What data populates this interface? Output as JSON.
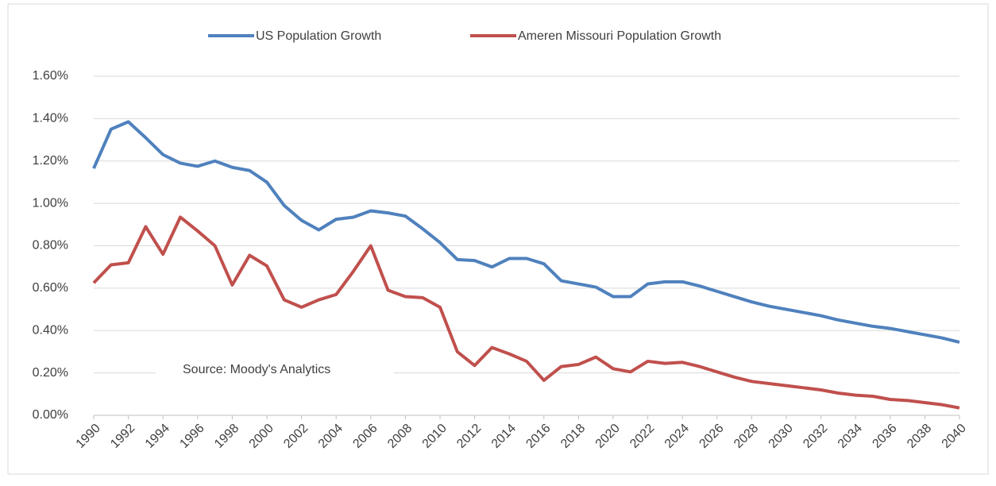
{
  "chart_data": {
    "type": "line",
    "x": [
      1990,
      1991,
      1992,
      1993,
      1994,
      1995,
      1996,
      1997,
      1998,
      1999,
      2000,
      2001,
      2002,
      2003,
      2004,
      2005,
      2006,
      2007,
      2008,
      2009,
      2010,
      2011,
      2012,
      2013,
      2014,
      2015,
      2016,
      2017,
      2018,
      2019,
      2020,
      2021,
      2022,
      2023,
      2024,
      2025,
      2026,
      2027,
      2028,
      2029,
      2030,
      2031,
      2032,
      2033,
      2034,
      2035,
      2036,
      2037,
      2038,
      2039,
      2040
    ],
    "xlim": [
      1990,
      2040
    ],
    "xticks": [
      1990,
      1992,
      1994,
      1996,
      1998,
      2000,
      2002,
      2004,
      2006,
      2008,
      2010,
      2012,
      2014,
      2016,
      2018,
      2020,
      2022,
      2024,
      2026,
      2028,
      2030,
      2032,
      2034,
      2036,
      2038,
      2040
    ],
    "ylim": [
      0,
      1.6
    ],
    "yticks": [
      {
        "value": 0,
        "label": "0.00%"
      },
      {
        "value": 0.2,
        "label": "0.20%"
      },
      {
        "value": 0.4,
        "label": "0.40%"
      },
      {
        "value": 0.6,
        "label": "0.60%"
      },
      {
        "value": 0.8,
        "label": "0.80%"
      },
      {
        "value": 1.0,
        "label": "1.00%"
      },
      {
        "value": 1.2,
        "label": "1.20%"
      },
      {
        "value": 1.4,
        "label": "1.40%"
      },
      {
        "value": 1.6,
        "label": "1.60%"
      }
    ],
    "grid": true,
    "legend": "top",
    "annotation": "Source: Moody's Analytics",
    "series": [
      {
        "name": "US Population Growth",
        "color": "#4f81bd",
        "values": [
          1.165,
          1.35,
          1.385,
          1.31,
          1.23,
          1.19,
          1.175,
          1.2,
          1.17,
          1.155,
          1.1,
          0.99,
          0.92,
          0.875,
          0.925,
          0.935,
          0.965,
          0.955,
          0.94,
          0.88,
          0.815,
          0.735,
          0.73,
          0.7,
          0.74,
          0.74,
          0.715,
          0.635,
          0.62,
          0.605,
          0.56,
          0.56,
          0.62,
          0.63,
          0.63,
          0.61,
          0.585,
          0.56,
          0.535,
          0.515,
          0.5,
          0.485,
          0.47,
          0.45,
          0.435,
          0.42,
          0.41,
          0.395,
          0.38,
          0.365,
          0.345
        ]
      },
      {
        "name": "Ameren Missouri Population Growth",
        "color": "#c0504d",
        "values": [
          0.625,
          0.71,
          0.72,
          0.89,
          0.76,
          0.935,
          0.87,
          0.8,
          0.615,
          0.755,
          0.705,
          0.545,
          0.51,
          0.545,
          0.57,
          0.68,
          0.8,
          0.59,
          0.56,
          0.555,
          0.51,
          0.3,
          0.235,
          0.32,
          0.29,
          0.255,
          0.165,
          0.23,
          0.24,
          0.275,
          0.22,
          0.205,
          0.255,
          0.245,
          0.25,
          0.23,
          0.205,
          0.18,
          0.16,
          0.15,
          0.14,
          0.13,
          0.12,
          0.105,
          0.095,
          0.09,
          0.075,
          0.07,
          0.06,
          0.05,
          0.035
        ]
      }
    ]
  }
}
